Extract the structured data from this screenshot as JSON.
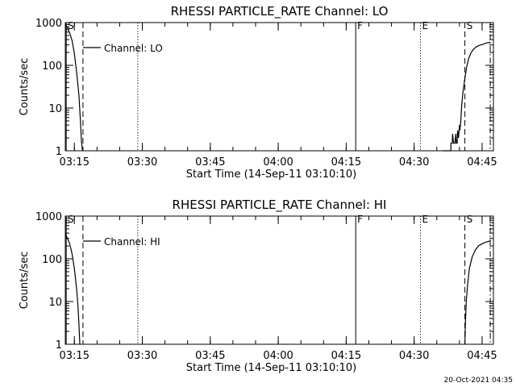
{
  "footer": {
    "timestamp": "20-Oct-2021 04:35"
  },
  "chart_data": [
    {
      "type": "line",
      "title": "RHESSI PARTICLE_RATE Channel: LO",
      "xlabel": "Start Time (14-Sep-11 03:10:10)",
      "ylabel": "Counts/sec",
      "yscale": "log",
      "ylim": [
        1,
        1000
      ],
      "xlim_minutes": [
        3.0,
        97.5
      ],
      "yticks": [
        {
          "value": 1,
          "label": "1"
        },
        {
          "value": 10,
          "label": "10"
        },
        {
          "value": 100,
          "label": "100"
        },
        {
          "value": 1000,
          "label": "1000"
        }
      ],
      "xticks": [
        {
          "minute": 5,
          "label": "03:15"
        },
        {
          "minute": 20,
          "label": "03:30"
        },
        {
          "minute": 35,
          "label": "03:45"
        },
        {
          "minute": 50,
          "label": "04:00"
        },
        {
          "minute": 65,
          "label": "04:15"
        },
        {
          "minute": 80,
          "label": "04:30"
        },
        {
          "minute": 95,
          "label": "04:45"
        }
      ],
      "legend": {
        "label": "Channel: LO",
        "position": "top-left"
      },
      "markers": [
        {
          "minute": 3.2,
          "style": "solid",
          "label": "S"
        },
        {
          "minute": 6.9,
          "style": "dashed",
          "label": ""
        },
        {
          "minute": 19.0,
          "style": "dotted",
          "label": ""
        },
        {
          "minute": 67.1,
          "style": "solid",
          "label": "F"
        },
        {
          "minute": 81.4,
          "style": "dotted",
          "label": "E"
        },
        {
          "minute": 91.2,
          "style": "dashed",
          "label": "S"
        },
        {
          "minute": 96.8,
          "style": "dashdot",
          "label": ""
        }
      ],
      "series": [
        {
          "segments": [
            [
              [
                3.0,
                900
              ],
              [
                3.5,
                750
              ],
              [
                4.0,
                560
              ],
              [
                4.5,
                380
              ],
              [
                5.0,
                190
              ],
              [
                5.5,
                70
              ],
              [
                6.0,
                20
              ],
              [
                6.3,
                6
              ],
              [
                6.6,
                1.5
              ],
              [
                6.8,
                1
              ]
            ],
            [
              [
                86.4,
                1
              ],
              [
                88.1,
                1
              ],
              [
                88.1,
                1.5
              ],
              [
                88.4,
                1.5
              ],
              [
                88.5,
                2.5
              ],
              [
                88.7,
                1.5
              ],
              [
                89.0,
                1.5
              ],
              [
                89.2,
                2.5
              ],
              [
                89.3,
                1.5
              ],
              [
                89.5,
                1.5
              ],
              [
                89.6,
                3
              ],
              [
                89.8,
                2
              ],
              [
                90.0,
                4
              ],
              [
                90.1,
                3
              ],
              [
                90.3,
                5
              ],
              [
                90.5,
                12
              ],
              [
                90.8,
                25
              ],
              [
                91.2,
                50
              ],
              [
                91.6,
                90
              ],
              [
                92.0,
                140
              ],
              [
                92.5,
                190
              ],
              [
                93.0,
                230
              ],
              [
                93.5,
                260
              ],
              [
                94.0,
                280
              ],
              [
                94.5,
                295
              ],
              [
                95.0,
                305
              ],
              [
                95.5,
                320
              ],
              [
                96.0,
                335
              ],
              [
                96.8,
                345
              ]
            ]
          ]
        }
      ]
    },
    {
      "type": "line",
      "title": "RHESSI PARTICLE_RATE Channel: HI",
      "xlabel": "Start Time (14-Sep-11 03:10:10)",
      "ylabel": "Counts/sec",
      "yscale": "log",
      "ylim": [
        1,
        1000
      ],
      "xlim_minutes": [
        3.0,
        97.5
      ],
      "yticks": [
        {
          "value": 1,
          "label": "1"
        },
        {
          "value": 10,
          "label": "10"
        },
        {
          "value": 100,
          "label": "100"
        },
        {
          "value": 1000,
          "label": "1000"
        }
      ],
      "xticks": [
        {
          "minute": 5,
          "label": "03:15"
        },
        {
          "minute": 20,
          "label": "03:30"
        },
        {
          "minute": 35,
          "label": "03:45"
        },
        {
          "minute": 50,
          "label": "04:00"
        },
        {
          "minute": 65,
          "label": "04:15"
        },
        {
          "minute": 80,
          "label": "04:30"
        },
        {
          "minute": 95,
          "label": "04:45"
        }
      ],
      "legend": {
        "label": "Channel: HI",
        "position": "top-left"
      },
      "markers": [
        {
          "minute": 3.2,
          "style": "solid",
          "label": "S"
        },
        {
          "minute": 6.9,
          "style": "dashed",
          "label": ""
        },
        {
          "minute": 19.0,
          "style": "dotted",
          "label": ""
        },
        {
          "minute": 67.1,
          "style": "solid",
          "label": "F"
        },
        {
          "minute": 81.4,
          "style": "dotted",
          "label": "E"
        },
        {
          "minute": 91.2,
          "style": "dashed",
          "label": "S"
        },
        {
          "minute": 96.8,
          "style": "dashdot",
          "label": ""
        }
      ],
      "series": [
        {
          "segments": [
            [
              [
                3.0,
                380
              ],
              [
                3.5,
                300
              ],
              [
                4.0,
                220
              ],
              [
                4.5,
                130
              ],
              [
                5.0,
                60
              ],
              [
                5.5,
                20
              ],
              [
                5.8,
                8
              ],
              [
                6.0,
                3
              ],
              [
                6.2,
                1
              ]
            ],
            [
              [
                91.2,
                1
              ],
              [
                91.3,
                3
              ],
              [
                91.5,
                10
              ],
              [
                91.8,
                25
              ],
              [
                92.2,
                60
              ],
              [
                92.8,
                110
              ],
              [
                93.5,
                160
              ],
              [
                94.2,
                200
              ],
              [
                95.0,
                225
              ],
              [
                95.8,
                245
              ],
              [
                96.5,
                258
              ],
              [
                96.8,
                260
              ]
            ]
          ]
        }
      ]
    }
  ]
}
